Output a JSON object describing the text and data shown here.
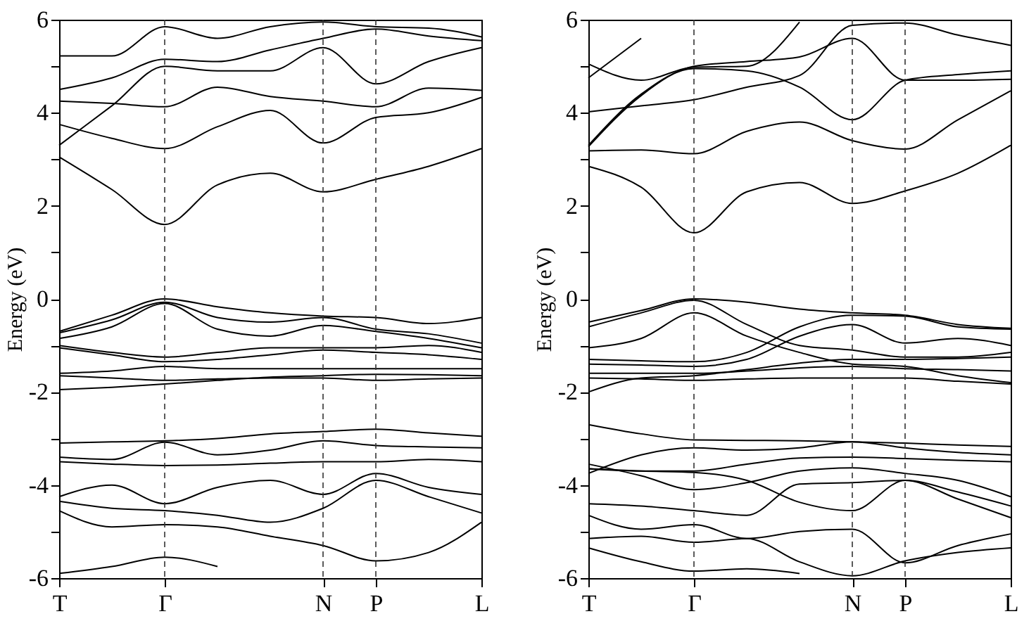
{
  "chart_data": [
    {
      "type": "line",
      "ylabel": "Energy (eV)",
      "categories": [
        "T",
        null,
        "Γ",
        null,
        null,
        "N",
        "P",
        null,
        "L"
      ],
      "ylim": [
        -6,
        6
      ],
      "yticks": [
        -6,
        {
          "value": -5,
          "label": null
        },
        -4,
        {
          "value": -3,
          "label": null
        },
        -2,
        {
          "value": -1,
          "label": null
        },
        0,
        {
          "value": 1,
          "label": null
        },
        2,
        {
          "value": 3,
          "label": null
        },
        4,
        {
          "value": 5,
          "label": null
        },
        6
      ],
      "grid": false,
      "legend": false,
      "marker": "none",
      "line_style": "solid",
      "ref_lines": [
        {
          "axis": "x",
          "value": "Γ",
          "line_style": "dashed"
        },
        {
          "axis": "x",
          "value": "N",
          "line_style": "dashed"
        },
        {
          "axis": "x",
          "value": "P",
          "line_style": "dashed"
        }
      ],
      "series": [
        {
          "color": "#000000",
          "values": [
            3.05,
            2.35,
            1.6,
            2.45,
            2.7,
            2.3,
            2.57,
            2.85,
            3.23
          ]
        },
        {
          "color": "#000000",
          "values": [
            3.75,
            3.45,
            3.23,
            3.7,
            4.05,
            3.35,
            3.9,
            4.0,
            4.33
          ]
        },
        {
          "color": "#000000",
          "values": [
            4.25,
            4.2,
            4.13,
            4.55,
            4.35,
            4.25,
            4.13,
            4.53,
            4.48
          ]
        },
        {
          "color": "#000000",
          "values": [
            3.3,
            4.15,
            5.0,
            4.9,
            4.9,
            5.4,
            4.62,
            5.1,
            5.4
          ]
        },
        {
          "color": "#000000",
          "values": [
            4.5,
            4.75,
            5.15,
            5.1,
            5.35,
            5.6,
            5.8,
            5.65,
            5.55
          ]
        },
        {
          "color": "#000000",
          "values": [
            5.22,
            5.22,
            5.85,
            5.6,
            5.85,
            5.95,
            5.85,
            5.82,
            5.63
          ]
        },
        {
          "color": "#000000",
          "values": [
            -0.7,
            -0.35,
            0,
            -0.17,
            -0.3,
            -0.37,
            -0.4,
            -0.53,
            -0.4
          ]
        },
        {
          "color": "#000000",
          "values": [
            -0.73,
            -0.45,
            -0.07,
            -0.4,
            -0.5,
            -0.4,
            -0.65,
            -0.75,
            -0.95
          ]
        },
        {
          "color": "#000000",
          "values": [
            -0.85,
            -0.6,
            -0.1,
            -0.65,
            -0.8,
            -0.57,
            -0.7,
            -0.85,
            -1.05
          ]
        },
        {
          "color": "#000000",
          "values": [
            -1.0,
            -1.15,
            -1.25,
            -1.15,
            -1.05,
            -1.05,
            -1.05,
            -1.0,
            -1.15
          ]
        },
        {
          "color": "#000000",
          "values": [
            -1.05,
            -1.2,
            -1.35,
            -1.3,
            -1.2,
            -1.1,
            -1.15,
            -1.2,
            -1.3
          ]
        },
        {
          "color": "#000000",
          "values": [
            -1.6,
            -1.55,
            -1.45,
            -1.5,
            -1.5,
            -1.5,
            -1.5,
            -1.5,
            -1.5
          ]
        },
        {
          "color": "#000000",
          "values": [
            -1.65,
            -1.7,
            -1.75,
            -1.72,
            -1.7,
            -1.7,
            -1.75,
            -1.72,
            -1.7
          ]
        },
        {
          "color": "#000000",
          "values": [
            -1.95,
            -1.9,
            -1.83,
            -1.75,
            -1.68,
            -1.65,
            -1.62,
            -1.63,
            -1.65
          ]
        },
        {
          "color": "#000000",
          "values": [
            -3.1,
            -3.07,
            -3.05,
            -3.0,
            -2.9,
            -2.85,
            -2.8,
            -2.88,
            -2.95
          ]
        },
        {
          "color": "#000000",
          "values": [
            -3.4,
            -3.45,
            -3.08,
            -3.35,
            -3.25,
            -3.05,
            -3.15,
            -3.18,
            -3.2
          ]
        },
        {
          "color": "#000000",
          "values": [
            -3.5,
            -3.55,
            -3.58,
            -3.57,
            -3.53,
            -3.5,
            -3.5,
            -3.45,
            -3.5
          ]
        },
        {
          "color": "#000000",
          "values": [
            -4.25,
            -4.0,
            -4.4,
            -4.05,
            -3.9,
            -4.2,
            -3.75,
            -4.05,
            -4.2
          ]
        },
        {
          "color": "#000000",
          "values": [
            -4.35,
            -4.5,
            -4.55,
            -4.65,
            -4.8,
            -4.5,
            -3.9,
            -4.25,
            -4.6
          ]
        },
        {
          "color": "#000000",
          "values": [
            -4.55,
            -4.9,
            -4.85,
            -4.9,
            -5.1,
            -5.3,
            -5.63,
            -5.45,
            -4.8
          ]
        },
        {
          "color": "#000000",
          "values": [
            -5.9,
            -5.75,
            -5.55,
            -5.75,
            null,
            null,
            null,
            null,
            null
          ]
        }
      ]
    },
    {
      "type": "line",
      "ylabel": "Energy (eV)",
      "categories": [
        "T",
        null,
        "Γ",
        null,
        null,
        "N",
        "P",
        null,
        "L"
      ],
      "ylim": [
        -6,
        6
      ],
      "yticks": [
        -6,
        {
          "value": -5,
          "label": null
        },
        -4,
        {
          "value": -3,
          "label": null
        },
        -2,
        {
          "value": -1,
          "label": null
        },
        0,
        {
          "value": 1,
          "label": null
        },
        2,
        {
          "value": 3,
          "label": null
        },
        4,
        {
          "value": 5,
          "label": null
        },
        6
      ],
      "grid": false,
      "legend": false,
      "marker": "none",
      "line_style": "solid",
      "ref_lines": [
        {
          "axis": "x",
          "value": "Γ",
          "line_style": "dashed"
        },
        {
          "axis": "x",
          "value": "N",
          "line_style": "dashed"
        },
        {
          "axis": "x",
          "value": "P",
          "line_style": "dashed"
        }
      ],
      "series": [
        {
          "color": "#000000",
          "values": [
            2.85,
            2.4,
            1.42,
            2.3,
            2.5,
            2.05,
            2.32,
            2.7,
            3.3
          ]
        },
        {
          "color": "#000000",
          "values": [
            3.18,
            3.2,
            3.12,
            3.6,
            3.8,
            3.4,
            3.22,
            3.85,
            4.47
          ]
        },
        {
          "color": "#000000",
          "values": [
            4.02,
            4.15,
            4.28,
            4.55,
            4.8,
            5.88,
            5.93,
            5.67,
            5.45
          ]
        },
        {
          "color": "#000000",
          "values": [
            3.3,
            4.4,
            4.95,
            4.9,
            4.55,
            3.85,
            4.7,
            4.82,
            4.9
          ]
        },
        {
          "color": "#000000",
          "values": [
            3.27,
            4.37,
            5.0,
            5.1,
            5.2,
            5.6,
            4.7,
            4.7,
            4.72
          ]
        },
        {
          "color": "#000000",
          "values": [
            5.05,
            4.7,
            4.98,
            5.0,
            5.95,
            null,
            null,
            null,
            null
          ]
        },
        {
          "color": "#000000",
          "values": [
            4.75,
            5.6,
            null,
            null,
            null,
            null,
            null,
            null,
            null
          ]
        },
        {
          "color": "#000000",
          "values": [
            -0.5,
            -0.25,
            0,
            -0.07,
            -0.22,
            -0.3,
            -0.35,
            -0.55,
            -0.63
          ]
        },
        {
          "color": "#000000",
          "values": [
            -0.6,
            -0.3,
            -0.03,
            -0.55,
            -1.0,
            -1.1,
            -1.25,
            -1.25,
            -1.15
          ]
        },
        {
          "color": "#000000",
          "values": [
            -1.05,
            -0.85,
            -0.3,
            -0.8,
            -1.15,
            -1.4,
            -1.45,
            -1.65,
            -1.8
          ]
        },
        {
          "color": "#000000",
          "values": [
            -1.3,
            -1.33,
            -1.35,
            -1.15,
            -0.6,
            -0.35,
            -0.37,
            -0.6,
            -0.65
          ]
        },
        {
          "color": "#000000",
          "values": [
            -1.4,
            -1.42,
            -1.45,
            -1.3,
            -0.8,
            -0.55,
            -0.95,
            -0.85,
            -1.0
          ]
        },
        {
          "color": "#000000",
          "values": [
            -1.6,
            -1.6,
            -1.6,
            -1.55,
            -1.48,
            -1.45,
            -1.5,
            -1.52,
            -1.55
          ]
        },
        {
          "color": "#000000",
          "values": [
            -1.7,
            -1.72,
            -1.75,
            -1.72,
            -1.7,
            -1.7,
            -1.7,
            -1.77,
            -1.83
          ]
        },
        {
          "color": "#000000",
          "values": [
            -2.0,
            -1.7,
            -1.65,
            -1.52,
            -1.38,
            -1.3,
            -1.3,
            -1.28,
            -1.25
          ]
        },
        {
          "color": "#000000",
          "values": [
            -2.7,
            -2.9,
            -3.03,
            -3.04,
            -3.05,
            -3.07,
            -3.1,
            -3.14,
            -3.17
          ]
        },
        {
          "color": "#000000",
          "values": [
            -3.75,
            -3.35,
            -3.2,
            -3.25,
            -3.2,
            -3.07,
            -3.2,
            -3.3,
            -3.35
          ]
        },
        {
          "color": "#000000",
          "values": [
            -3.65,
            -3.7,
            -3.7,
            -3.55,
            -3.42,
            -3.4,
            -3.43,
            -3.47,
            -3.5
          ]
        },
        {
          "color": "#000000",
          "values": [
            -3.55,
            -3.8,
            -4.1,
            -3.95,
            -3.7,
            -3.63,
            -3.75,
            -3.9,
            -4.25
          ]
        },
        {
          "color": "#000000",
          "values": [
            -3.65,
            -3.7,
            -3.73,
            -3.9,
            -4.37,
            -4.55,
            -3.9,
            -4.15,
            -4.45
          ]
        },
        {
          "color": "#000000",
          "values": [
            -4.4,
            -4.45,
            -4.55,
            -4.65,
            -3.98,
            -3.95,
            -3.9,
            -4.3,
            -4.7
          ]
        },
        {
          "color": "#000000",
          "values": [
            -4.65,
            -4.95,
            -4.85,
            -5.15,
            -5.0,
            -4.95,
            -5.67,
            -5.3,
            -5.05
          ]
        },
        {
          "color": "#000000",
          "values": [
            -5.15,
            -5.1,
            -5.23,
            -5.15,
            -5.65,
            -5.95,
            -5.63,
            -5.45,
            -5.35
          ]
        },
        {
          "color": "#000000",
          "values": [
            -5.35,
            -5.65,
            -5.85,
            -5.8,
            -5.9,
            null,
            null,
            null,
            null
          ]
        }
      ]
    }
  ]
}
